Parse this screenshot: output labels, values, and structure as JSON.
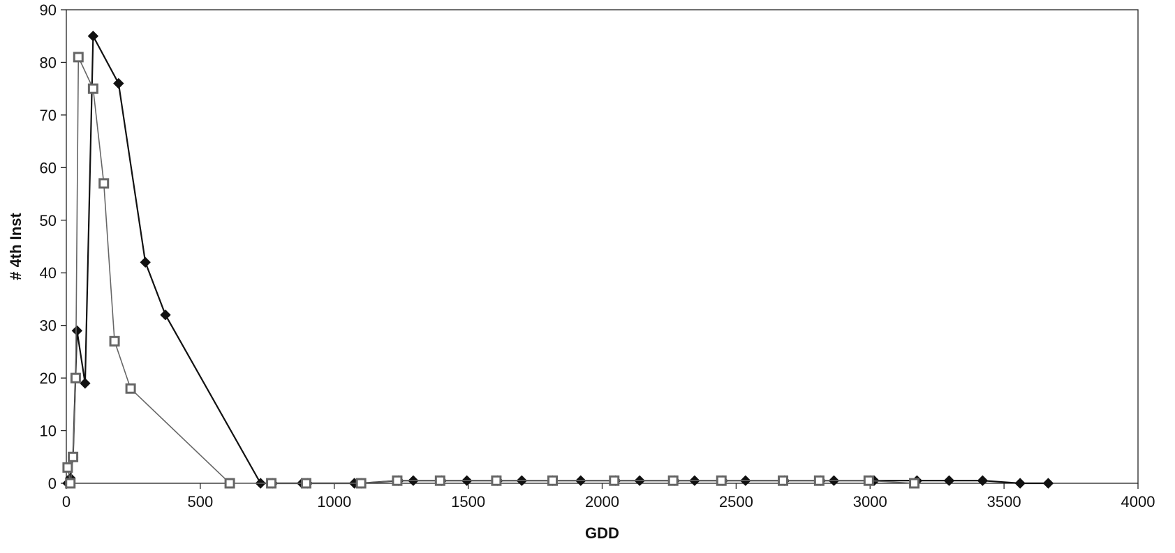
{
  "chart_data": {
    "type": "scatter",
    "title": "",
    "xlabel": "GDD",
    "ylabel": "# 4th Inst",
    "xlim": [
      0,
      4000
    ],
    "ylim": [
      0,
      90
    ],
    "xticks": [
      0,
      500,
      1000,
      1500,
      2000,
      2500,
      3000,
      3500,
      4000
    ],
    "yticks": [
      0,
      10,
      20,
      30,
      40,
      50,
      60,
      70,
      80,
      90
    ],
    "grid": false,
    "legend": "none",
    "lines": true,
    "series": [
      {
        "marker": "diamond",
        "color": "#111111",
        "points": [
          [
            5,
            0
          ],
          [
            15,
            1
          ],
          [
            25,
            5
          ],
          [
            40,
            29
          ],
          [
            70,
            19
          ],
          [
            100,
            85
          ],
          [
            195,
            76
          ],
          [
            295,
            42
          ],
          [
            370,
            32
          ],
          [
            725,
            0
          ],
          [
            770,
            0
          ],
          [
            880,
            0
          ],
          [
            900,
            0
          ],
          [
            1075,
            0
          ],
          [
            1100,
            0
          ],
          [
            1240,
            0.5
          ],
          [
            1295,
            0.5
          ],
          [
            1400,
            0.5
          ],
          [
            1495,
            0.5
          ],
          [
            1610,
            0.5
          ],
          [
            1700,
            0.5
          ],
          [
            1815,
            0.5
          ],
          [
            1920,
            0.5
          ],
          [
            2050,
            0.5
          ],
          [
            2140,
            0.5
          ],
          [
            2270,
            0.5
          ],
          [
            2345,
            0.5
          ],
          [
            2450,
            0.5
          ],
          [
            2535,
            0.5
          ],
          [
            2680,
            0.5
          ],
          [
            2815,
            0.5
          ],
          [
            2865,
            0.5
          ],
          [
            3000,
            0.5
          ],
          [
            3015,
            0.5
          ],
          [
            3175,
            0.5
          ],
          [
            3295,
            0.5
          ],
          [
            3420,
            0.5
          ],
          [
            3560,
            0
          ],
          [
            3665,
            0
          ]
        ]
      },
      {
        "marker": "square",
        "color": "#666666",
        "points": [
          [
            5,
            3
          ],
          [
            15,
            0
          ],
          [
            25,
            5
          ],
          [
            35,
            20
          ],
          [
            45,
            81
          ],
          [
            100,
            75
          ],
          [
            140,
            57
          ],
          [
            180,
            27
          ],
          [
            240,
            18
          ],
          [
            610,
            0
          ],
          [
            765,
            0
          ],
          [
            895,
            0
          ],
          [
            1100,
            0
          ],
          [
            1235,
            0.5
          ],
          [
            1395,
            0.5
          ],
          [
            1605,
            0.5
          ],
          [
            1815,
            0.5
          ],
          [
            2045,
            0.5
          ],
          [
            2265,
            0.5
          ],
          [
            2445,
            0.5
          ],
          [
            2675,
            0.5
          ],
          [
            2810,
            0.5
          ],
          [
            2995,
            0.5
          ],
          [
            3165,
            0
          ]
        ]
      }
    ]
  }
}
